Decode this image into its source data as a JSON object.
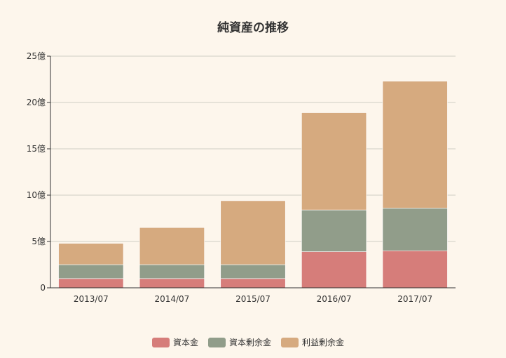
{
  "chart_data": {
    "type": "bar",
    "stacked": true,
    "title": "純資産の推移",
    "categories": [
      "2013/07",
      "2014/07",
      "2015/07",
      "2016/07",
      "2017/07"
    ],
    "series": [
      {
        "name": "資本金",
        "color": "#d67d7a",
        "values": [
          1.0,
          1.0,
          1.0,
          3.9,
          4.0
        ]
      },
      {
        "name": "資本剰余金",
        "color": "#919d8a",
        "values": [
          1.5,
          1.5,
          1.5,
          4.5,
          4.6
        ]
      },
      {
        "name": "利益剰余金",
        "color": "#d6aa7f",
        "values": [
          2.3,
          4.0,
          6.9,
          10.5,
          13.7
        ]
      }
    ],
    "ylim": [
      0,
      25
    ],
    "yticks": [
      0,
      5,
      10,
      15,
      20,
      25
    ],
    "ytick_labels": [
      "0",
      "5億",
      "10億",
      "15億",
      "20億",
      "25億"
    ],
    "grid": true,
    "legend_position": "bottom"
  }
}
